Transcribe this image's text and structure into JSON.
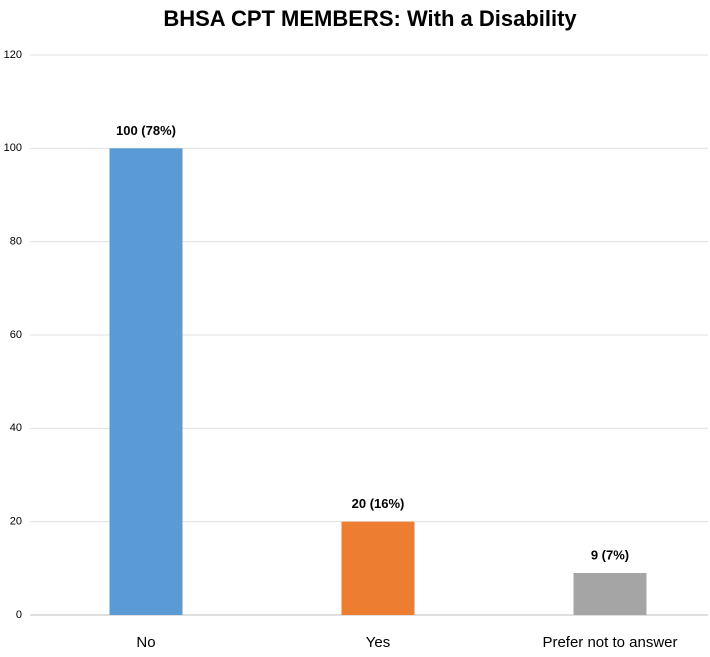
{
  "chart_data": {
    "type": "bar",
    "title": "BHSA CPT MEMBERS: With a Disability",
    "categories": [
      "No",
      "Yes",
      "Prefer not to answer"
    ],
    "values": [
      100,
      20,
      9
    ],
    "value_labels": [
      "100 (78%)",
      "20 (16%)",
      "9 (7%)"
    ],
    "colors": [
      "#5b9bd5",
      "#ed7d31",
      "#a5a5a5"
    ],
    "ylim": [
      0,
      120
    ],
    "yticks": [
      0,
      20,
      40,
      60,
      80,
      100,
      120
    ],
    "grid": true
  }
}
